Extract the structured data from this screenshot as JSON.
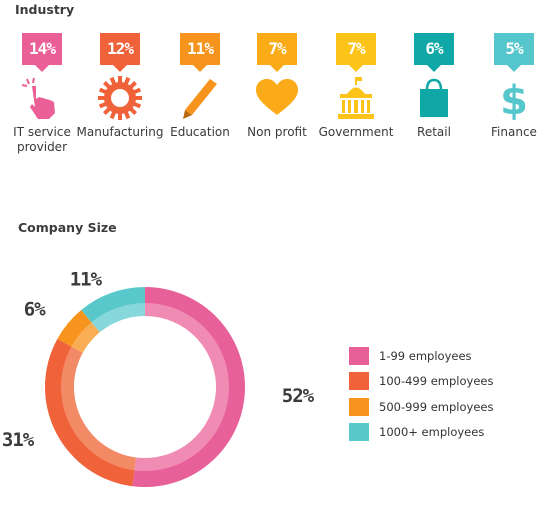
{
  "industry": {
    "title": "Industry",
    "items": [
      {
        "percent": "14%",
        "label": "IT service provider",
        "color": "#ea5f95",
        "icon": "hand-pointer-icon"
      },
      {
        "percent": "12%",
        "label": "Manufacturing",
        "color": "#f0623a",
        "icon": "gear-icon"
      },
      {
        "percent": "11%",
        "label": "Education",
        "color": "#f7941d",
        "icon": "pencil-icon"
      },
      {
        "percent": "7%",
        "label": "Non profit",
        "color": "#fbab18",
        "icon": "heart-icon"
      },
      {
        "percent": "7%",
        "label": "Government",
        "color": "#fcc419",
        "icon": "government-building-icon"
      },
      {
        "percent": "6%",
        "label": "Retail",
        "color": "#0fa8a6",
        "icon": "shopping-bag-icon"
      },
      {
        "percent": "5%",
        "label": "Finance",
        "color": "#55c6cc",
        "icon": "dollar-icon"
      }
    ]
  },
  "company_size": {
    "title": "Company Size"
  },
  "chart_data": [
    {
      "type": "bar",
      "title": "Industry",
      "categories": [
        "IT service provider",
        "Manufacturing",
        "Education",
        "Non profit",
        "Government",
        "Retail",
        "Finance"
      ],
      "values": [
        14,
        12,
        11,
        7,
        7,
        6,
        5
      ]
    },
    {
      "type": "pie",
      "title": "Company Size",
      "categories": [
        "1-99 employees",
        "100-499 employees",
        "500-999 employees",
        "1000+ employees"
      ],
      "values": [
        52,
        31,
        6,
        11
      ],
      "value_labels": [
        "52%",
        "31%",
        "6%",
        "11%"
      ],
      "colors": [
        "#e8609a",
        "#f0623a",
        "#f7941d",
        "#59c8cb"
      ],
      "inner_colors": [
        "#f08cb4",
        "#f38a66",
        "#f9ae55",
        "#86d8da"
      ],
      "legend_position": "right"
    }
  ]
}
